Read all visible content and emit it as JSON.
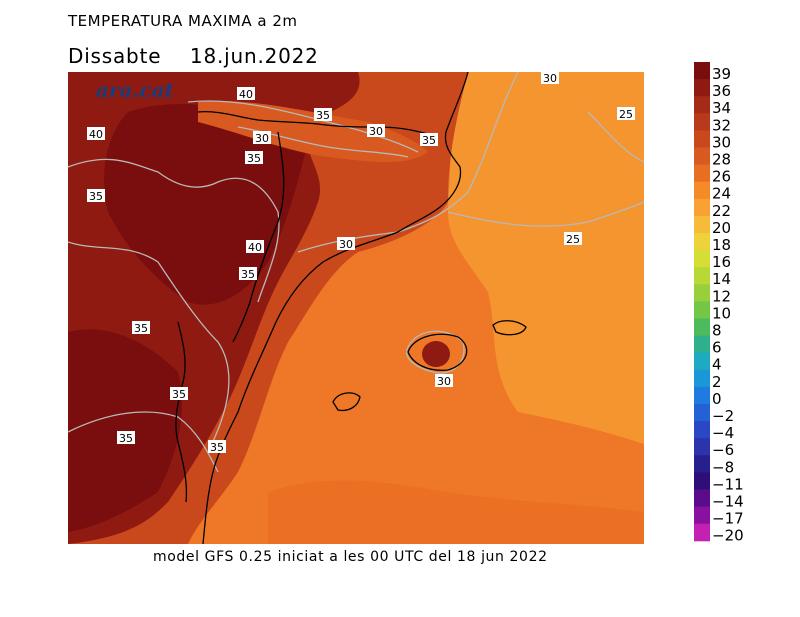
{
  "title": "TEMPERATURA MAXIMA a 2m",
  "subtitle": "Dissabte    18.jun.2022",
  "footer": "model GFS 0.25 iniciat a les 00 UTC del 18 jun 2022",
  "logo_text": "ara.cat",
  "legend": {
    "labels": [
      "39",
      "36",
      "34",
      "32",
      "30",
      "28",
      "26",
      "24",
      "22",
      "20",
      "18",
      "16",
      "14",
      "12",
      "10",
      "8",
      "6",
      "4",
      "2",
      "0",
      "−2",
      "−4",
      "−6",
      "−8",
      "−11",
      "−14",
      "−17",
      "−20"
    ],
    "colors": [
      "#7a0d0d",
      "#8e1a12",
      "#a52a17",
      "#b8391b",
      "#c9491d",
      "#d85a20",
      "#e86e22",
      "#f58a28",
      "#f7a233",
      "#f7bb3c",
      "#eed23c",
      "#d6de36",
      "#b8d836",
      "#98cf3a",
      "#74c646",
      "#4dba5c",
      "#2eb08c",
      "#1eaac0",
      "#1b96d6",
      "#1e7ce0",
      "#2461d6",
      "#2a48c4",
      "#2b34ab",
      "#281f8f",
      "#300e7a",
      "#5a0c8c",
      "#8a10a0",
      "#c421b4"
    ]
  },
  "contour_labels": [
    {
      "text": "40"
    },
    {
      "text": "35"
    },
    {
      "text": "30"
    },
    {
      "text": "30"
    },
    {
      "text": "35"
    },
    {
      "text": "30"
    },
    {
      "text": "25"
    },
    {
      "text": "40"
    },
    {
      "text": "35"
    },
    {
      "text": "35"
    },
    {
      "text": "30"
    },
    {
      "text": "25"
    },
    {
      "text": "40"
    },
    {
      "text": "35"
    },
    {
      "text": "35"
    },
    {
      "text": "30"
    },
    {
      "text": "35"
    },
    {
      "text": "35"
    },
    {
      "text": "35"
    }
  ],
  "colors": {
    "sea": "#ee7828",
    "sea_light": "#f0882a",
    "inland_hot": "#7a0d0d",
    "inland_mid": "#a52a17",
    "coast_warm": "#c9491d",
    "east_mild": "#f7a233",
    "contour": "#b8b8b8",
    "border": "#000000"
  }
}
